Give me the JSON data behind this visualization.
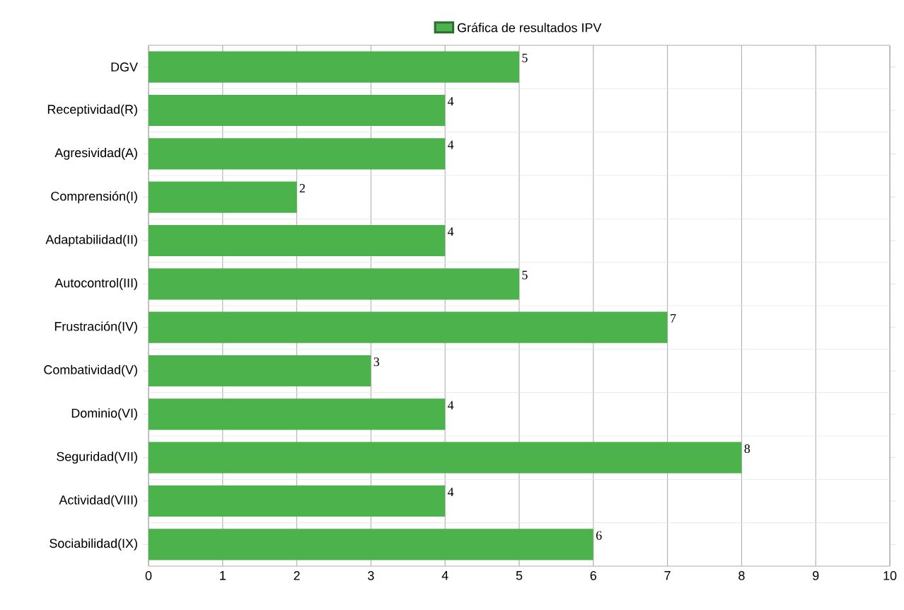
{
  "chart_data": {
    "type": "bar",
    "orientation": "horizontal",
    "categories": [
      "DGV",
      "Receptividad(R)",
      "Agresividad(A)",
      "Comprensión(I)",
      "Adaptabilidad(II)",
      "Autocontrol(III)",
      "Frustración(IV)",
      "Combatividad(V)",
      "Dominio(VI)",
      "Seguridad(VII)",
      "Actividad(VIII)",
      "Sociabilidad(IX)"
    ],
    "series": [
      {
        "name": "Gráfica de resultados IPV",
        "color": "#4cb34c",
        "values": [
          5,
          4,
          4,
          2,
          4,
          5,
          7,
          3,
          4,
          8,
          4,
          6
        ]
      }
    ],
    "xlim": [
      0,
      10
    ],
    "xticks": [
      0,
      1,
      2,
      3,
      4,
      5,
      6,
      7,
      8,
      9,
      10
    ],
    "grid": true,
    "legend": "top",
    "data_labels": true
  }
}
